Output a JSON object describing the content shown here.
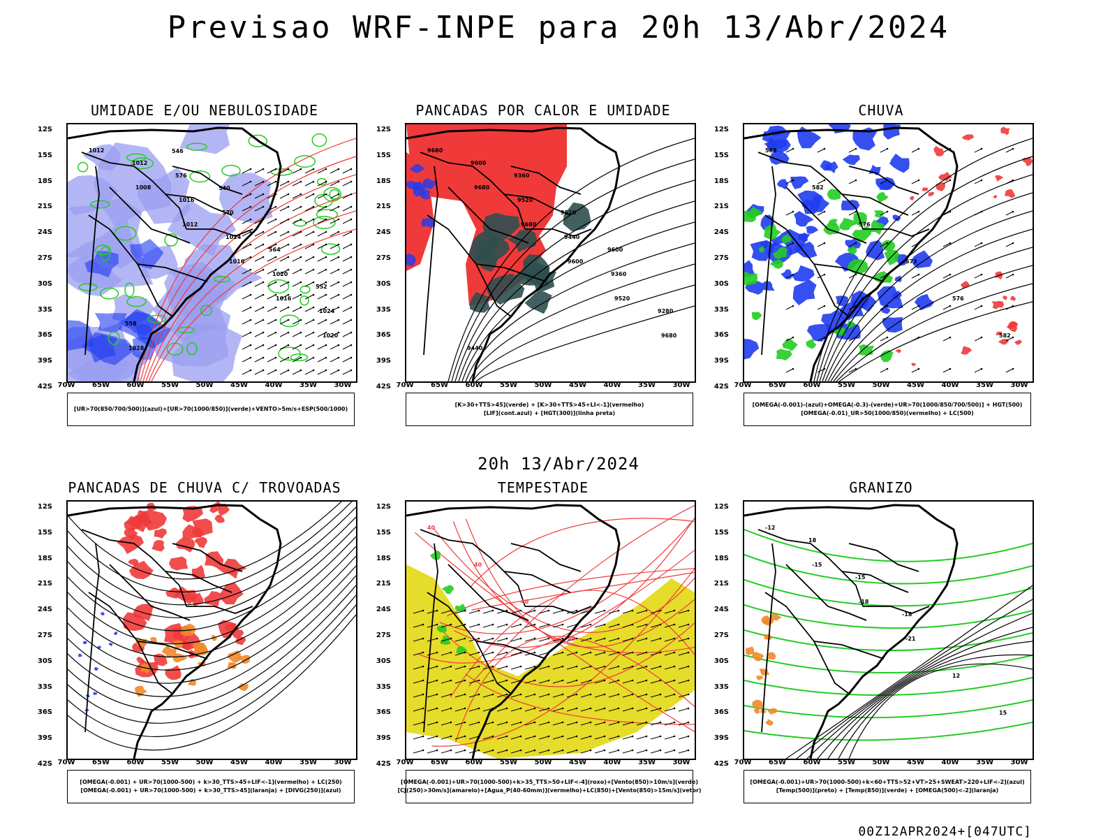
{
  "header": {
    "title": "Previsao WRF-INPE  para 20h 13/Abr/2024"
  },
  "mid_date": "20h 13/Abr/2024",
  "footer": {
    "stamp": "00Z12APR2024+[047UTC]"
  },
  "axes": {
    "lat_ticks": [
      "12S",
      "15S",
      "18S",
      "21S",
      "24S",
      "27S",
      "30S",
      "33S",
      "36S",
      "39S",
      "42S"
    ],
    "lon_ticks": [
      "70W",
      "65W",
      "60W",
      "55W",
      "50W",
      "45W",
      "40W",
      "35W",
      "30W"
    ]
  },
  "panels": [
    {
      "title": "UMIDADE E/OU NEBULOSIDADE",
      "legend": [
        "[UR>70(850/700/500)](azul)+[UR>70(1000/850)](verde)+VENTO>5m/s+ESP(500/1000)"
      ],
      "contour_labels": [
        "1012",
        "1008",
        "1012",
        "1016",
        "1016",
        "1020",
        "1012",
        "1016",
        "1024",
        "1020",
        "1024",
        "1028",
        "576",
        "570",
        "564",
        "552",
        "558",
        "546",
        "540"
      ]
    },
    {
      "title": "PANCADAS POR CALOR E UMIDADE",
      "legend": [
        "[K>30+TTS>45](verde) + [K>30+TTS>45+LI<-1](vermelho)",
        "[LIF](cont.azul) + [HGT(300)](linha preta)"
      ],
      "contour_labels": [
        "9680",
        "9680",
        "9680",
        "9600",
        "9520",
        "9680",
        "9600",
        "9520",
        "9440",
        "9360",
        "9280",
        "9440",
        "9360",
        "9520",
        "9600"
      ]
    },
    {
      "title": "CHUVA",
      "legend": [
        "[OMEGA(-0.001)-(azul)+OMEGA(-0.3)-(verde)+UR>70(1000/850/700/500)] + HGT(500)",
        "[OMEGA(-0.01)_UR>50(1000/850)(vermelho) + LC(500)"
      ],
      "contour_labels": [
        "588",
        "582",
        "576",
        "573",
        "576",
        "582"
      ]
    },
    {
      "title": "PANCADAS DE CHUVA C/ TROVOADAS",
      "legend": [
        "[OMEGA(-0.001) + UR>70(1000-500) + k>30_TTS>45+LIF<-1](vermelho) + LC(250)",
        "[OMEGA(-0.001) + UR>70(1000-500) + k>30_TTS>45](laranja) + [DIVG(250)](azul)"
      ],
      "contour_labels": []
    },
    {
      "title": "TEMPESTADE",
      "legend": [
        "[OMEGA(-0.001)+UR>70(1000-500)+k>35_TTS>50+LIF<-4](roxo)+[Vento(850)>10m/s](verde)",
        "[CJ(250)>30m/s](amarelo)+[Agua_P(40-60mm)](vermelho)+LC(850)+[Vento(850)>15m/s](vetor)"
      ],
      "contour_labels": [
        "40",
        "40",
        "40",
        "40"
      ]
    },
    {
      "title": "GRANIZO",
      "legend": [
        "[OMEGA(-0.001)+UR>70(1000-500)+k<60+TTS>52+VT>25+SWEAT>220+LIF<-2](azul)",
        "[Temp(500)](preto) + [Temp(850)](verde) + [OMEGA(500)<-2](laranja)"
      ],
      "contour_labels": [
        "-12",
        "-15",
        "-18",
        "-21",
        "12",
        "15",
        "18",
        "-15",
        "-18"
      ]
    }
  ],
  "colors": {
    "blue_humidity": "#9a9ef0",
    "blue_deep": "#1f3cf0",
    "green": "#22cc22",
    "red": "#f03a3a",
    "dark_teal": "#2f4f4f",
    "yellow": "#e6dc2a",
    "orange": "#f08a2a"
  }
}
